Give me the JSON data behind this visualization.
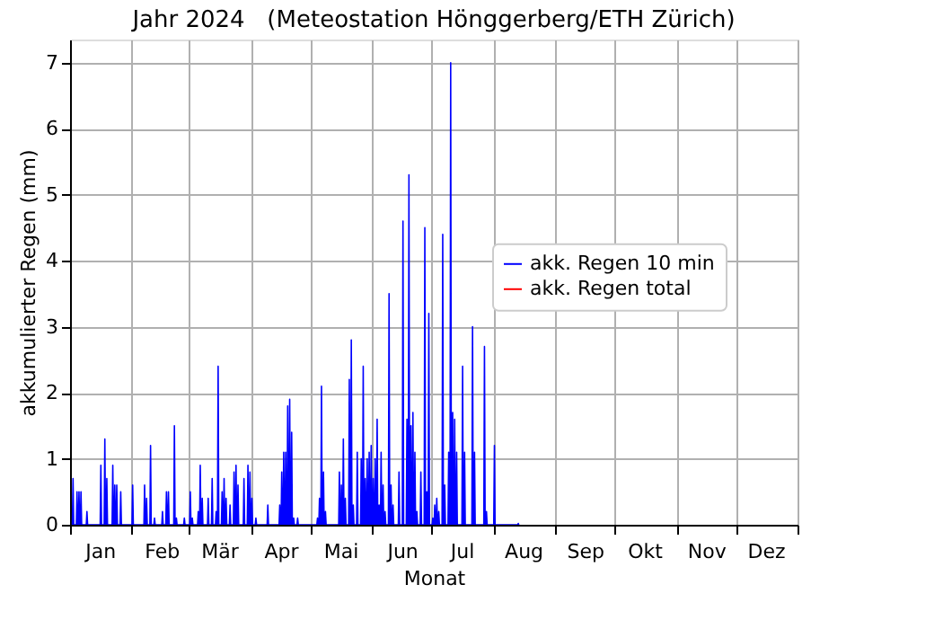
{
  "chart_data": {
    "type": "line",
    "title": "Jahr 2024   (Meteostation Hönggerberg/ETH Zürich)",
    "xlabel": "Monat",
    "ylabel": "akkumulierter Regen (mm)",
    "xlim": [
      "2024-01-01",
      "2025-01-01"
    ],
    "ylim": [
      0,
      7.35
    ],
    "yticks": [
      0,
      1,
      2,
      3,
      4,
      5,
      6,
      7
    ],
    "xticks": [
      {
        "value": "2024-01-01",
        "label": null
      },
      {
        "value": "2024-01-16",
        "label": "Jan"
      },
      {
        "value": "2024-02-01",
        "label": null
      },
      {
        "value": "2024-02-16",
        "label": "Feb"
      },
      {
        "value": "2024-03-01",
        "label": null
      },
      {
        "value": "2024-03-16",
        "label": "Mär"
      },
      {
        "value": "2024-04-01",
        "label": null
      },
      {
        "value": "2024-04-16",
        "label": "Apr"
      },
      {
        "value": "2024-05-01",
        "label": null
      },
      {
        "value": "2024-05-16",
        "label": "Mai"
      },
      {
        "value": "2024-06-01",
        "label": null
      },
      {
        "value": "2024-06-16",
        "label": "Jun"
      },
      {
        "value": "2024-07-01",
        "label": null
      },
      {
        "value": "2024-07-16",
        "label": "Jul"
      },
      {
        "value": "2024-08-01",
        "label": null
      },
      {
        "value": "2024-08-16",
        "label": "Aug"
      },
      {
        "value": "2024-09-01",
        "label": null
      },
      {
        "value": "2024-09-16",
        "label": "Sep"
      },
      {
        "value": "2024-10-01",
        "label": null
      },
      {
        "value": "2024-10-16",
        "label": "Okt"
      },
      {
        "value": "2024-11-01",
        "label": null
      },
      {
        "value": "2024-11-16",
        "label": "Nov"
      },
      {
        "value": "2024-12-01",
        "label": null
      },
      {
        "value": "2024-12-16",
        "label": "Dez"
      },
      {
        "value": "2025-01-01",
        "label": null
      }
    ],
    "grid": true,
    "legend": "right",
    "series": [
      {
        "name": "akk. Regen 10 min",
        "color": "#0000ff",
        "x": [
          "2024-01-02T04:00",
          "2024-01-02T12:00",
          "2024-01-02T20:00",
          "2024-01-04T04:00",
          "2024-01-04T12:00",
          "2024-01-04T20:00",
          "2024-01-05T04:00",
          "2024-01-05T12:00",
          "2024-01-05T20:00",
          "2024-01-06T04:00",
          "2024-01-06T12:00",
          "2024-01-06T20:00",
          "2024-01-09T04:00",
          "2024-01-09T12:00",
          "2024-01-09T20:00",
          "2024-01-16T04:00",
          "2024-01-16T12:00",
          "2024-01-16T20:00",
          "2024-01-18T04:00",
          "2024-01-18T12:00",
          "2024-01-18T20:00",
          "2024-01-19T04:00",
          "2024-01-19T12:00",
          "2024-01-19T20:00",
          "2024-01-22T04:00",
          "2024-01-22T12:00",
          "2024-01-22T20:00",
          "2024-01-23T04:00",
          "2024-01-23T12:00",
          "2024-01-23T20:00",
          "2024-01-24T04:00",
          "2024-01-24T12:00",
          "2024-01-24T20:00",
          "2024-01-26T04:00",
          "2024-01-26T12:00",
          "2024-01-26T20:00",
          "2024-02-01T04:00",
          "2024-02-01T12:00",
          "2024-02-01T20:00",
          "2024-02-07T04:00",
          "2024-02-07T12:00",
          "2024-02-07T20:00",
          "2024-02-08T04:00",
          "2024-02-08T12:00",
          "2024-02-08T20:00",
          "2024-02-10T04:00",
          "2024-02-10T12:00",
          "2024-02-10T20:00",
          "2024-02-12T04:00",
          "2024-02-12T12:00",
          "2024-02-12T20:00",
          "2024-02-16T04:00",
          "2024-02-16T12:00",
          "2024-02-16T20:00",
          "2024-02-18T04:00",
          "2024-02-18T12:00",
          "2024-02-18T20:00",
          "2024-02-19T04:00",
          "2024-02-19T12:00",
          "2024-02-19T20:00",
          "2024-02-22T04:00",
          "2024-02-22T12:00",
          "2024-02-22T20:00",
          "2024-02-23T04:00",
          "2024-02-23T12:00",
          "2024-02-23T20:00",
          "2024-02-27T04:00",
          "2024-02-27T12:00",
          "2024-02-27T20:00",
          "2024-03-01T04:00",
          "2024-03-01T12:00",
          "2024-03-01T20:00",
          "2024-03-02T04:00",
          "2024-03-02T12:00",
          "2024-03-02T20:00",
          "2024-03-05T04:00",
          "2024-03-05T12:00",
          "2024-03-05T20:00",
          "2024-03-06T04:00",
          "2024-03-06T12:00",
          "2024-03-06T20:00",
          "2024-03-07T04:00",
          "2024-03-07T12:00",
          "2024-03-07T20:00",
          "2024-03-10T04:00",
          "2024-03-10T12:00",
          "2024-03-10T20:00",
          "2024-03-12T04:00",
          "2024-03-12T12:00",
          "2024-03-12T20:00",
          "2024-03-14T04:00",
          "2024-03-14T12:00",
          "2024-03-14T20:00",
          "2024-03-15T04:00",
          "2024-03-15T12:00",
          "2024-03-15T20:00",
          "2024-03-17T04:00",
          "2024-03-17T12:00",
          "2024-03-17T20:00",
          "2024-03-18T04:00",
          "2024-03-18T12:00",
          "2024-03-18T20:00",
          "2024-03-19T04:00",
          "2024-03-19T12:00",
          "2024-03-19T20:00",
          "2024-03-21T04:00",
          "2024-03-21T12:00",
          "2024-03-21T20:00",
          "2024-03-23T04:00",
          "2024-03-23T12:00",
          "2024-03-23T20:00",
          "2024-03-24T04:00",
          "2024-03-24T12:00",
          "2024-03-24T20:00",
          "2024-03-25T04:00",
          "2024-03-25T12:00",
          "2024-03-25T20:00",
          "2024-03-28T04:00",
          "2024-03-28T12:00",
          "2024-03-28T20:00",
          "2024-03-30T04:00",
          "2024-03-30T12:00",
          "2024-03-30T20:00",
          "2024-03-31T04:00",
          "2024-03-31T12:00",
          "2024-03-31T20:00",
          "2024-04-01T04:00",
          "2024-04-01T12:00",
          "2024-04-01T20:00",
          "2024-04-03T04:00",
          "2024-04-03T12:00",
          "2024-04-03T20:00",
          "2024-04-09T04:00",
          "2024-04-09T12:00",
          "2024-04-09T20:00",
          "2024-04-15T04:00",
          "2024-04-15T12:00",
          "2024-04-15T20:00",
          "2024-04-16T04:00",
          "2024-04-16T12:00",
          "2024-04-16T20:00",
          "2024-04-17T04:00",
          "2024-04-17T12:00",
          "2024-04-17T20:00",
          "2024-04-18T04:00",
          "2024-04-18T12:00",
          "2024-04-18T20:00",
          "2024-04-19T04:00",
          "2024-04-19T12:00",
          "2024-04-19T20:00",
          "2024-04-20T04:00",
          "2024-04-20T12:00",
          "2024-04-20T20:00",
          "2024-04-21T04:00",
          "2024-04-21T12:00",
          "2024-04-21T20:00",
          "2024-04-22T04:00",
          "2024-04-22T12:00",
          "2024-04-22T20:00",
          "2024-04-24T04:00",
          "2024-04-24T12:00",
          "2024-04-24T20:00",
          "2024-05-04T04:00",
          "2024-05-04T12:00",
          "2024-05-04T20:00",
          "2024-05-05T04:00",
          "2024-05-05T12:00",
          "2024-05-05T20:00",
          "2024-05-06T04:00",
          "2024-05-06T12:00",
          "2024-05-06T20:00",
          "2024-05-07T04:00",
          "2024-05-07T12:00",
          "2024-05-07T20:00",
          "2024-05-08T04:00",
          "2024-05-08T12:00",
          "2024-05-08T20:00",
          "2024-05-15T04:00",
          "2024-05-15T12:00",
          "2024-05-15T20:00",
          "2024-05-16T04:00",
          "2024-05-16T12:00",
          "2024-05-16T20:00",
          "2024-05-17T04:00",
          "2024-05-17T12:00",
          "2024-05-17T20:00",
          "2024-05-18T04:00",
          "2024-05-18T12:00",
          "2024-05-18T20:00",
          "2024-05-20T04:00",
          "2024-05-20T12:00",
          "2024-05-20T20:00",
          "2024-05-21T04:00",
          "2024-05-21T12:00",
          "2024-05-21T20:00",
          "2024-05-22T04:00",
          "2024-05-22T12:00",
          "2024-05-22T20:00",
          "2024-05-24T04:00",
          "2024-05-24T12:00",
          "2024-05-24T20:00",
          "2024-05-26T04:00",
          "2024-05-26T12:00",
          "2024-05-26T20:00",
          "2024-05-27T04:00",
          "2024-05-27T12:00",
          "2024-05-27T20:00",
          "2024-05-28T04:00",
          "2024-05-28T12:00",
          "2024-05-28T20:00",
          "2024-05-29T04:00",
          "2024-05-29T12:00",
          "2024-05-29T20:00",
          "2024-05-30T04:00",
          "2024-05-30T12:00",
          "2024-05-30T20:00",
          "2024-05-31T04:00",
          "2024-05-31T12:00",
          "2024-05-31T20:00",
          "2024-06-01T04:00",
          "2024-06-01T12:00",
          "2024-06-01T20:00",
          "2024-06-02T04:00",
          "2024-06-02T12:00",
          "2024-06-02T20:00",
          "2024-06-03T04:00",
          "2024-06-03T12:00",
          "2024-06-03T20:00",
          "2024-06-04T04:00",
          "2024-06-04T12:00",
          "2024-06-04T20:00",
          "2024-06-05T04:00",
          "2024-06-05T12:00",
          "2024-06-05T20:00",
          "2024-06-06T04:00",
          "2024-06-06T12:00",
          "2024-06-06T20:00",
          "2024-06-07T04:00",
          "2024-06-07T12:00",
          "2024-06-07T20:00",
          "2024-06-09T04:00",
          "2024-06-09T12:00",
          "2024-06-09T20:00",
          "2024-06-10T04:00",
          "2024-06-10T12:00",
          "2024-06-10T20:00",
          "2024-06-11T04:00",
          "2024-06-11T12:00",
          "2024-06-11T20:00",
          "2024-06-14T04:00",
          "2024-06-14T12:00",
          "2024-06-14T20:00",
          "2024-06-16T04:00",
          "2024-06-16T12:00",
          "2024-06-16T20:00",
          "2024-06-18T04:00",
          "2024-06-18T12:00",
          "2024-06-18T20:00",
          "2024-06-19T04:00",
          "2024-06-19T12:00",
          "2024-06-19T20:00",
          "2024-06-20T04:00",
          "2024-06-20T12:00",
          "2024-06-20T20:00",
          "2024-06-21T04:00",
          "2024-06-21T12:00",
          "2024-06-21T20:00",
          "2024-06-22T04:00",
          "2024-06-22T12:00",
          "2024-06-22T20:00",
          "2024-06-23T04:00",
          "2024-06-23T12:00",
          "2024-06-23T20:00",
          "2024-06-25T04:00",
          "2024-06-25T12:00",
          "2024-06-25T20:00",
          "2024-06-27T04:00",
          "2024-06-27T12:00",
          "2024-06-27T20:00",
          "2024-06-28T04:00",
          "2024-06-28T12:00",
          "2024-06-28T20:00",
          "2024-06-29T04:00",
          "2024-06-29T12:00",
          "2024-06-29T20:00",
          "2024-07-01T04:00",
          "2024-07-01T12:00",
          "2024-07-01T20:00",
          "2024-07-02T04:00",
          "2024-07-02T12:00",
          "2024-07-02T20:00",
          "2024-07-03T04:00",
          "2024-07-03T12:00",
          "2024-07-03T20:00",
          "2024-07-04T04:00",
          "2024-07-04T12:00",
          "2024-07-04T20:00",
          "2024-07-06T04:00",
          "2024-07-06T12:00",
          "2024-07-06T20:00",
          "2024-07-07T04:00",
          "2024-07-07T12:00",
          "2024-07-07T20:00",
          "2024-07-09T04:00",
          "2024-07-09T12:00",
          "2024-07-09T20:00",
          "2024-07-10T04:00",
          "2024-07-10T12:00",
          "2024-07-10T20:00",
          "2024-07-11T04:00",
          "2024-07-11T12:00",
          "2024-07-11T20:00",
          "2024-07-12T04:00",
          "2024-07-12T12:00",
          "2024-07-12T20:00",
          "2024-07-13T04:00",
          "2024-07-13T12:00",
          "2024-07-13T20:00",
          "2024-07-16T04:00",
          "2024-07-16T12:00",
          "2024-07-16T20:00",
          "2024-07-17T04:00",
          "2024-07-17T12:00",
          "2024-07-17T20:00",
          "2024-07-21T04:00",
          "2024-07-21T12:00",
          "2024-07-21T20:00",
          "2024-07-22T04:00",
          "2024-07-22T12:00",
          "2024-07-22T20:00",
          "2024-07-27T04:00",
          "2024-07-27T12:00",
          "2024-07-27T20:00",
          "2024-07-28T04:00",
          "2024-07-28T12:00",
          "2024-07-28T20:00",
          "2024-08-01T04:00",
          "2024-08-01T12:00",
          "2024-08-01T20:00",
          "2024-08-13T04:00",
          "2024-08-13T12:00",
          "2024-08-13T20:00"
        ],
        "values": [
          0,
          0.7,
          0,
          0,
          0.5,
          0,
          0,
          0.5,
          0,
          0,
          0.5,
          0,
          0,
          0.2,
          0,
          0,
          0.9,
          0,
          0,
          1.3,
          0,
          0,
          0.7,
          0,
          0,
          0.9,
          0,
          0,
          0.6,
          0,
          0,
          0.6,
          0,
          0,
          0.5,
          0,
          0,
          0.6,
          0,
          0,
          0.6,
          0,
          0,
          0.4,
          0,
          0,
          1.2,
          0,
          0,
          0.1,
          0,
          0,
          0.2,
          0,
          0,
          0.5,
          0,
          0,
          0.5,
          0,
          0,
          1.5,
          0,
          0,
          0.1,
          0,
          0,
          0.1,
          0,
          0,
          0.5,
          0,
          0,
          0.1,
          0,
          0,
          0.2,
          0,
          0,
          0.9,
          0,
          0,
          0.4,
          0,
          0,
          0.4,
          0,
          0,
          0.7,
          0,
          0,
          0.2,
          0,
          0,
          2.4,
          0,
          0,
          0.5,
          0,
          0,
          0.7,
          0,
          0,
          0.4,
          0,
          0,
          0.3,
          0,
          0,
          0.8,
          0,
          0,
          0.9,
          0,
          0,
          0.6,
          0,
          0,
          0.7,
          0,
          0,
          0.9,
          0,
          0,
          0.8,
          0,
          0,
          0.4,
          0,
          0,
          0.1,
          0,
          0,
          0.3,
          0,
          0,
          0.3,
          0,
          0,
          0.8,
          0,
          0,
          1.1,
          0,
          0,
          1.1,
          0,
          0,
          1.8,
          0,
          0,
          1.9,
          0,
          0,
          1.4,
          0,
          0,
          0.1,
          0,
          0,
          0.1,
          0,
          0,
          0.1,
          0,
          0,
          0.4,
          0,
          0,
          2.1,
          0,
          0,
          0.8,
          0,
          0,
          0.2,
          0,
          0,
          0.8,
          0,
          0,
          0.6,
          0,
          0,
          1.3,
          0,
          0,
          0.4,
          0,
          0,
          2.2,
          0,
          0,
          2.8,
          0,
          0,
          0.3,
          0,
          0,
          1.1,
          0,
          0,
          1.0,
          0,
          0,
          2.4,
          0,
          0,
          0.7,
          0,
          0,
          1.0,
          0,
          0,
          1.1,
          0,
          0,
          1.2,
          0,
          0,
          0.7,
          0,
          0,
          1.0,
          0,
          0,
          1.6,
          0,
          0,
          0.3,
          0,
          0,
          1.1,
          0,
          0,
          0.6,
          0,
          0,
          0.2,
          0,
          0,
          3.5,
          0,
          0,
          0.6,
          0,
          0,
          0.3,
          0,
          0,
          0.8,
          0,
          0,
          4.6,
          0,
          0,
          1.6,
          0,
          0,
          5.3,
          0,
          0,
          1.5,
          0,
          0,
          1.7,
          0,
          0,
          1.1,
          0,
          0,
          0.2,
          0,
          0,
          0.8,
          0,
          0,
          4.5,
          0,
          0,
          0.5,
          0,
          0,
          3.2,
          0,
          0,
          0.1,
          0,
          0,
          0.3,
          0,
          0,
          0.4,
          0,
          0,
          0.2,
          0,
          0,
          4.4,
          0,
          0,
          0.6,
          0,
          0,
          1.1,
          0,
          0,
          7.0,
          0,
          0,
          1.7,
          0,
          0,
          1.6,
          0,
          0,
          1.1,
          0,
          0,
          2.4,
          0,
          0,
          1.1,
          0,
          0,
          3.0,
          0,
          0,
          1.1,
          0,
          0,
          2.7,
          0,
          0,
          0.2,
          0,
          0,
          1.2,
          0,
          0,
          0.02,
          0
        ]
      },
      {
        "name": "akk. Regen total",
        "color": "#ff0000"
      }
    ]
  }
}
